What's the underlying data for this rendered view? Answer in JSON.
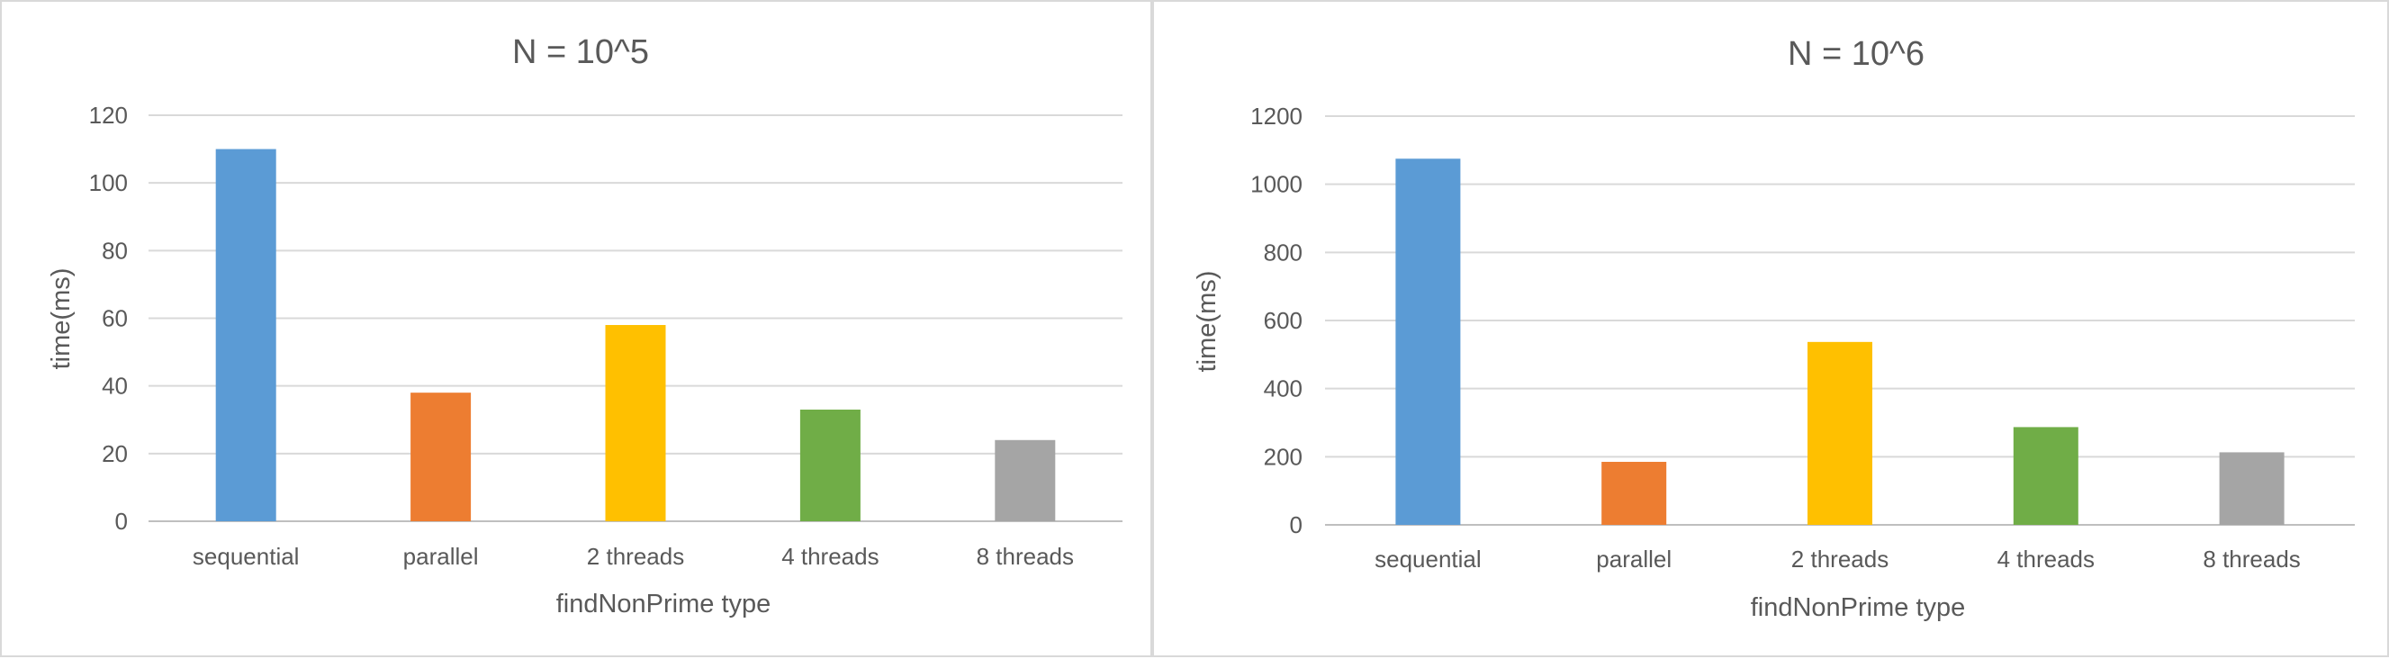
{
  "chart_data": [
    {
      "type": "bar",
      "title": "N = 10^5",
      "xlabel": "findNonPrime type",
      "ylabel": "time(ms)",
      "categories": [
        "sequential",
        "parallel",
        "2 threads",
        "4 threads",
        "8 threads"
      ],
      "values": [
        110,
        38,
        58,
        33,
        24
      ],
      "colors": [
        "#5b9bd5",
        "#ed7d31",
        "#ffc000",
        "#70ad47",
        "#a5a5a5"
      ],
      "ylim": [
        0,
        120
      ],
      "yticks": [
        "0",
        "20",
        "40",
        "60",
        "80",
        "100",
        "120"
      ],
      "ytick_values": [
        0,
        20,
        40,
        60,
        80,
        100,
        120
      ],
      "grid": true,
      "legend": "none"
    },
    {
      "type": "bar",
      "title": "N = 10^6",
      "xlabel": "findNonPrime type",
      "ylabel": "time(ms)",
      "categories": [
        "sequential",
        "parallel",
        "2 threads",
        "4 threads",
        "8 threads"
      ],
      "values": [
        1075,
        185,
        537,
        287,
        213
      ],
      "colors": [
        "#5b9bd5",
        "#ed7d31",
        "#ffc000",
        "#70ad47",
        "#a5a5a5"
      ],
      "ylim": [
        0,
        1200
      ],
      "yticks": [
        "0",
        "200",
        "400",
        "600",
        "800",
        "1000",
        "1200"
      ],
      "ytick_values": [
        0,
        200,
        400,
        600,
        800,
        1000,
        1200
      ],
      "grid": true,
      "legend": "none"
    }
  ]
}
